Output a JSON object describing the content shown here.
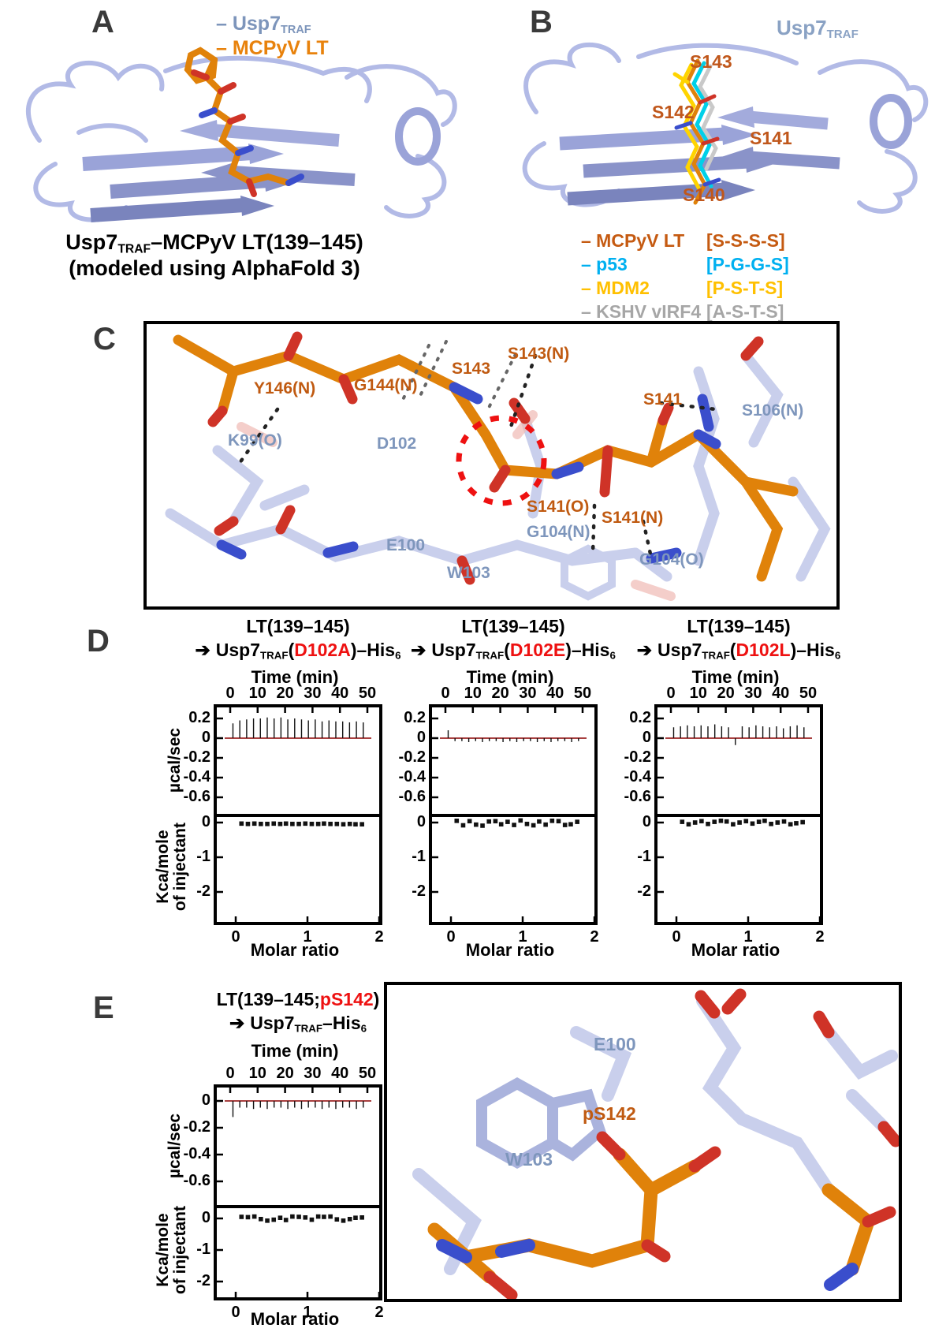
{
  "panels": {
    "a": "A",
    "b": "B",
    "c": "C",
    "d": "D",
    "e": "E"
  },
  "colors": {
    "usp7_ribbon": "#aeb6e6",
    "mcpyv_orange": "#e0820a",
    "label_orange": "#c05a11",
    "label_blue": "#7e96bc",
    "p53_cyan": "#00b0f0",
    "mdm2_yellow": "#ffc000",
    "kshv_gray": "#a6a6a6",
    "mutation_red": "#ee1111",
    "oxygen_red": "#cf3327",
    "nitrogen_blue": "#3a4ecc",
    "baseline_dark_red": "#8b0000"
  },
  "panelA": {
    "legend": [
      {
        "pre": "– Usp7",
        "sub": "TRAF",
        "color": "#7d95bb"
      },
      {
        "pre": "– MCPyV LT",
        "color": "#e8820c"
      }
    ],
    "caption": {
      "pre": "Usp7",
      "sub": "TRAF",
      "post": "–MCPyV LT(139–145)",
      "line2": "(modeled using AlphaFold 3)"
    }
  },
  "panelB": {
    "domain_label": {
      "pre": "Usp7",
      "sub": "TRAF"
    },
    "residues": [
      "S143",
      "S142",
      "S141",
      "S140"
    ],
    "legend": [
      {
        "name": "– MCPyV LT",
        "seq": "[S-S-S-S]",
        "color": "#c55a11"
      },
      {
        "name": "– p53",
        "seq": "[P-G-G-S]",
        "color": "#00b0f0"
      },
      {
        "name": "– MDM2",
        "seq": "[P-S-T-S]",
        "color": "#ffc000"
      },
      {
        "name": "– KSHV vIRF4",
        "seq": "[A-S-T-S]",
        "color": "#a6a6a6"
      }
    ]
  },
  "panelC": {
    "labels": [
      {
        "text": "Y146(N)",
        "color": "orange"
      },
      {
        "text": "G144(N)",
        "color": "orange"
      },
      {
        "text": "S143",
        "color": "orange"
      },
      {
        "text": "S143(N)",
        "color": "orange"
      },
      {
        "text": "S141",
        "color": "orange"
      },
      {
        "text": "S106(N)",
        "color": "blue"
      },
      {
        "text": "K99(O)",
        "color": "blue"
      },
      {
        "text": "D102",
        "color": "blue"
      },
      {
        "text": "S141(O)",
        "color": "orange"
      },
      {
        "text": "S141(N)",
        "color": "orange"
      },
      {
        "text": "G104(N)",
        "color": "blue"
      },
      {
        "text": "E100",
        "color": "blue"
      },
      {
        "text": "G104(O)",
        "color": "blue"
      },
      {
        "text": "W103",
        "color": "blue"
      }
    ]
  },
  "itc_axis": {
    "time_title": "Time (min)",
    "upper_ylabel": "µcal/sec",
    "lower_ylabel_1": "Kca/mole",
    "lower_ylabel_2": "of injectant",
    "xlabel": "Molar ratio"
  },
  "panelE": {
    "structure_labels": [
      {
        "text": "E100",
        "color": "blue"
      },
      {
        "text": "pS142",
        "color": "orange"
      },
      {
        "text": "W103",
        "color": "blue"
      }
    ]
  },
  "chart_data": [
    {
      "type": "line",
      "name": "ITC: LT(139-145) into Usp7TRAF(D102A)-His6",
      "title": {
        "line1": "LT(139–145)",
        "arrow": "➔",
        "pre": "Usp7",
        "sub": "TRAF",
        "open": "(",
        "mutation": "D102A",
        "close": ")–His",
        "sub6": "6"
      },
      "time_ticks": [
        0,
        10,
        20,
        30,
        40,
        50
      ],
      "xticks": [
        0,
        1,
        2
      ],
      "upper": {
        "ylabel": "µcal/sec",
        "yticks": [
          0.2,
          0,
          -0.2,
          -0.4,
          -0.6
        ],
        "ylim": [
          0.31,
          -0.78
        ],
        "spike_times": [
          1,
          3.5,
          6,
          8.5,
          11,
          13.5,
          16,
          18.5,
          21,
          23.5,
          26,
          28.5,
          31,
          33.5,
          36,
          38.5,
          41,
          43.5,
          46,
          48.5
        ],
        "spike_heights": [
          0.15,
          0.18,
          0.19,
          0.2,
          0.2,
          0.21,
          0.2,
          0.21,
          0.19,
          0.2,
          0.19,
          0.18,
          0.19,
          0.17,
          0.18,
          0.17,
          0.17,
          0.16,
          0.17,
          0.16
        ]
      },
      "lower": {
        "ylabel": "Kca/mole of injectant",
        "yticks": [
          0,
          -1,
          -2
        ],
        "ylim": [
          0.2,
          -2.85
        ],
        "points_x": [
          0.08,
          0.17,
          0.26,
          0.35,
          0.44,
          0.53,
          0.62,
          0.7,
          0.79,
          0.88,
          0.97,
          1.06,
          1.15,
          1.23,
          1.32,
          1.41,
          1.5,
          1.59,
          1.67,
          1.76
        ],
        "points_y": [
          -0.03,
          -0.04,
          -0.03,
          -0.04,
          -0.04,
          -0.03,
          -0.04,
          -0.03,
          -0.04,
          -0.04,
          -0.03,
          -0.04,
          -0.04,
          -0.03,
          -0.04,
          -0.04,
          -0.05,
          -0.04,
          -0.05,
          -0.05
        ]
      },
      "xlabel": "Molar ratio"
    },
    {
      "type": "line",
      "name": "ITC: LT(139-145) into Usp7TRAF(D102E)-His6",
      "title": {
        "line1": "LT(139–145)",
        "arrow": "➔",
        "pre": "Usp7",
        "sub": "TRAF",
        "open": "(",
        "mutation": "D102E",
        "close": ")–His",
        "sub6": "6"
      },
      "time_ticks": [
        0,
        10,
        20,
        30,
        40,
        50
      ],
      "xticks": [
        0,
        1,
        2
      ],
      "upper": {
        "ylabel": "µcal/sec",
        "yticks": [
          0.2,
          0,
          -0.2,
          -0.4,
          -0.6
        ],
        "ylim": [
          0.31,
          -0.78
        ],
        "spike_times": [
          1,
          3.5,
          6,
          8.5,
          11,
          13.5,
          16,
          18.5,
          21,
          23.5,
          26,
          28.5,
          31,
          33.5,
          36,
          38.5,
          41,
          43.5,
          46,
          48.5
        ],
        "spike_heights": [
          0.08,
          -0.03,
          -0.03,
          -0.04,
          -0.03,
          -0.04,
          -0.03,
          -0.03,
          -0.04,
          -0.03,
          -0.04,
          -0.03,
          -0.03,
          -0.04,
          -0.03,
          -0.04,
          -0.03,
          -0.03,
          -0.04,
          -0.03
        ]
      },
      "lower": {
        "ylabel": "Kca/mole of injectant",
        "yticks": [
          0,
          -1,
          -2
        ],
        "ylim": [
          0.2,
          -2.85
        ],
        "points_x": [
          0.08,
          0.17,
          0.26,
          0.35,
          0.44,
          0.53,
          0.62,
          0.7,
          0.79,
          0.88,
          0.97,
          1.06,
          1.15,
          1.23,
          1.32,
          1.41,
          1.5,
          1.59,
          1.67,
          1.76
        ],
        "points_y": [
          0.05,
          -0.08,
          0.04,
          -0.06,
          -0.09,
          0.03,
          0.04,
          -0.05,
          0.02,
          -0.07,
          0.06,
          -0.04,
          -0.08,
          0.03,
          -0.06,
          0.05,
          0.04,
          -0.07,
          -0.05,
          0.02
        ]
      },
      "xlabel": "Molar ratio"
    },
    {
      "type": "line",
      "name": "ITC: LT(139-145) into Usp7TRAF(D102L)-His6",
      "title": {
        "line1": "LT(139–145)",
        "arrow": "➔",
        "pre": "Usp7",
        "sub": "TRAF",
        "open": "(",
        "mutation": "D102L",
        "close": ")–His",
        "sub6": "6"
      },
      "time_ticks": [
        0,
        10,
        20,
        30,
        40,
        50
      ],
      "xticks": [
        0,
        1,
        2
      ],
      "upper": {
        "ylabel": "µcal/sec",
        "yticks": [
          0.2,
          0,
          -0.2,
          -0.4,
          -0.6
        ],
        "ylim": [
          0.31,
          -0.78
        ],
        "spike_times": [
          1,
          3.5,
          6,
          8.5,
          11,
          13.5,
          16,
          18.5,
          21,
          23.5,
          26,
          28.5,
          31,
          33.5,
          36,
          38.5,
          41,
          43.5,
          46,
          48.5
        ],
        "spike_heights": [
          0.11,
          0.12,
          0.13,
          0.12,
          0.13,
          0.12,
          0.14,
          0.12,
          0.11,
          -0.07,
          0.12,
          0.11,
          0.13,
          0.12,
          0.11,
          0.12,
          0.1,
          0.12,
          0.13,
          0.11
        ]
      },
      "lower": {
        "ylabel": "Kca/mole of injectant",
        "yticks": [
          0,
          -1,
          -2
        ],
        "ylim": [
          0.2,
          -2.85
        ],
        "points_x": [
          0.08,
          0.17,
          0.26,
          0.35,
          0.44,
          0.53,
          0.62,
          0.7,
          0.79,
          0.88,
          0.97,
          1.06,
          1.15,
          1.23,
          1.32,
          1.41,
          1.5,
          1.59,
          1.67,
          1.76
        ],
        "points_y": [
          0.02,
          -0.05,
          0,
          0.04,
          -0.04,
          0.02,
          0.05,
          0.03,
          -0.05,
          0,
          0.04,
          -0.03,
          0.02,
          0.05,
          -0.04,
          0,
          0.03,
          -0.05,
          -0.02,
          0.01
        ]
      },
      "xlabel": "Molar ratio"
    },
    {
      "type": "line",
      "name": "ITC: LT(139-145;pS142) into Usp7TRAF-His6",
      "title": {
        "line1_black": "LT(139–145;",
        "line1_red": "pS142",
        "line1_close": ")",
        "arrow": "➔",
        "pre": "Usp7",
        "sub": "TRAF",
        "post": "–His",
        "sub6": "6"
      },
      "time_ticks": [
        0,
        10,
        20,
        30,
        40,
        50
      ],
      "xticks": [
        0,
        1,
        2
      ],
      "upper": {
        "ylabel": "µcal/sec",
        "yticks": [
          0,
          -0.2,
          -0.4,
          -0.6
        ],
        "ylim": [
          0.1,
          -0.85
        ],
        "spike_times": [
          1,
          3.5,
          6,
          8.5,
          11,
          13.5,
          16,
          18.5,
          21,
          23.5,
          26,
          28.5,
          31,
          33.5,
          36,
          38.5,
          41,
          43.5,
          46,
          48.5
        ],
        "spike_heights": [
          -0.12,
          -0.05,
          -0.05,
          -0.06,
          -0.05,
          -0.06,
          -0.05,
          -0.05,
          -0.06,
          -0.05,
          -0.06,
          -0.05,
          -0.05,
          -0.06,
          -0.05,
          -0.06,
          -0.05,
          -0.05,
          -0.06,
          -0.05
        ]
      },
      "lower": {
        "ylabel": "Kca/mole of injectant",
        "yticks": [
          0,
          -1,
          -2
        ],
        "ylim": [
          0.38,
          -2.5
        ],
        "points_x": [
          0.08,
          0.17,
          0.26,
          0.35,
          0.44,
          0.53,
          0.62,
          0.7,
          0.79,
          0.88,
          0.97,
          1.06,
          1.15,
          1.23,
          1.32,
          1.41,
          1.5,
          1.59,
          1.67,
          1.76
        ],
        "points_y": [
          0.05,
          0.04,
          0.06,
          -0.02,
          -0.07,
          -0.04,
          0.02,
          -0.05,
          0.06,
          0.05,
          0.03,
          -0.04,
          0.06,
          0.05,
          0.06,
          -0.03,
          -0.07,
          -0.02,
          0.02,
          0.03
        ]
      },
      "xlabel": "Molar ratio"
    }
  ]
}
